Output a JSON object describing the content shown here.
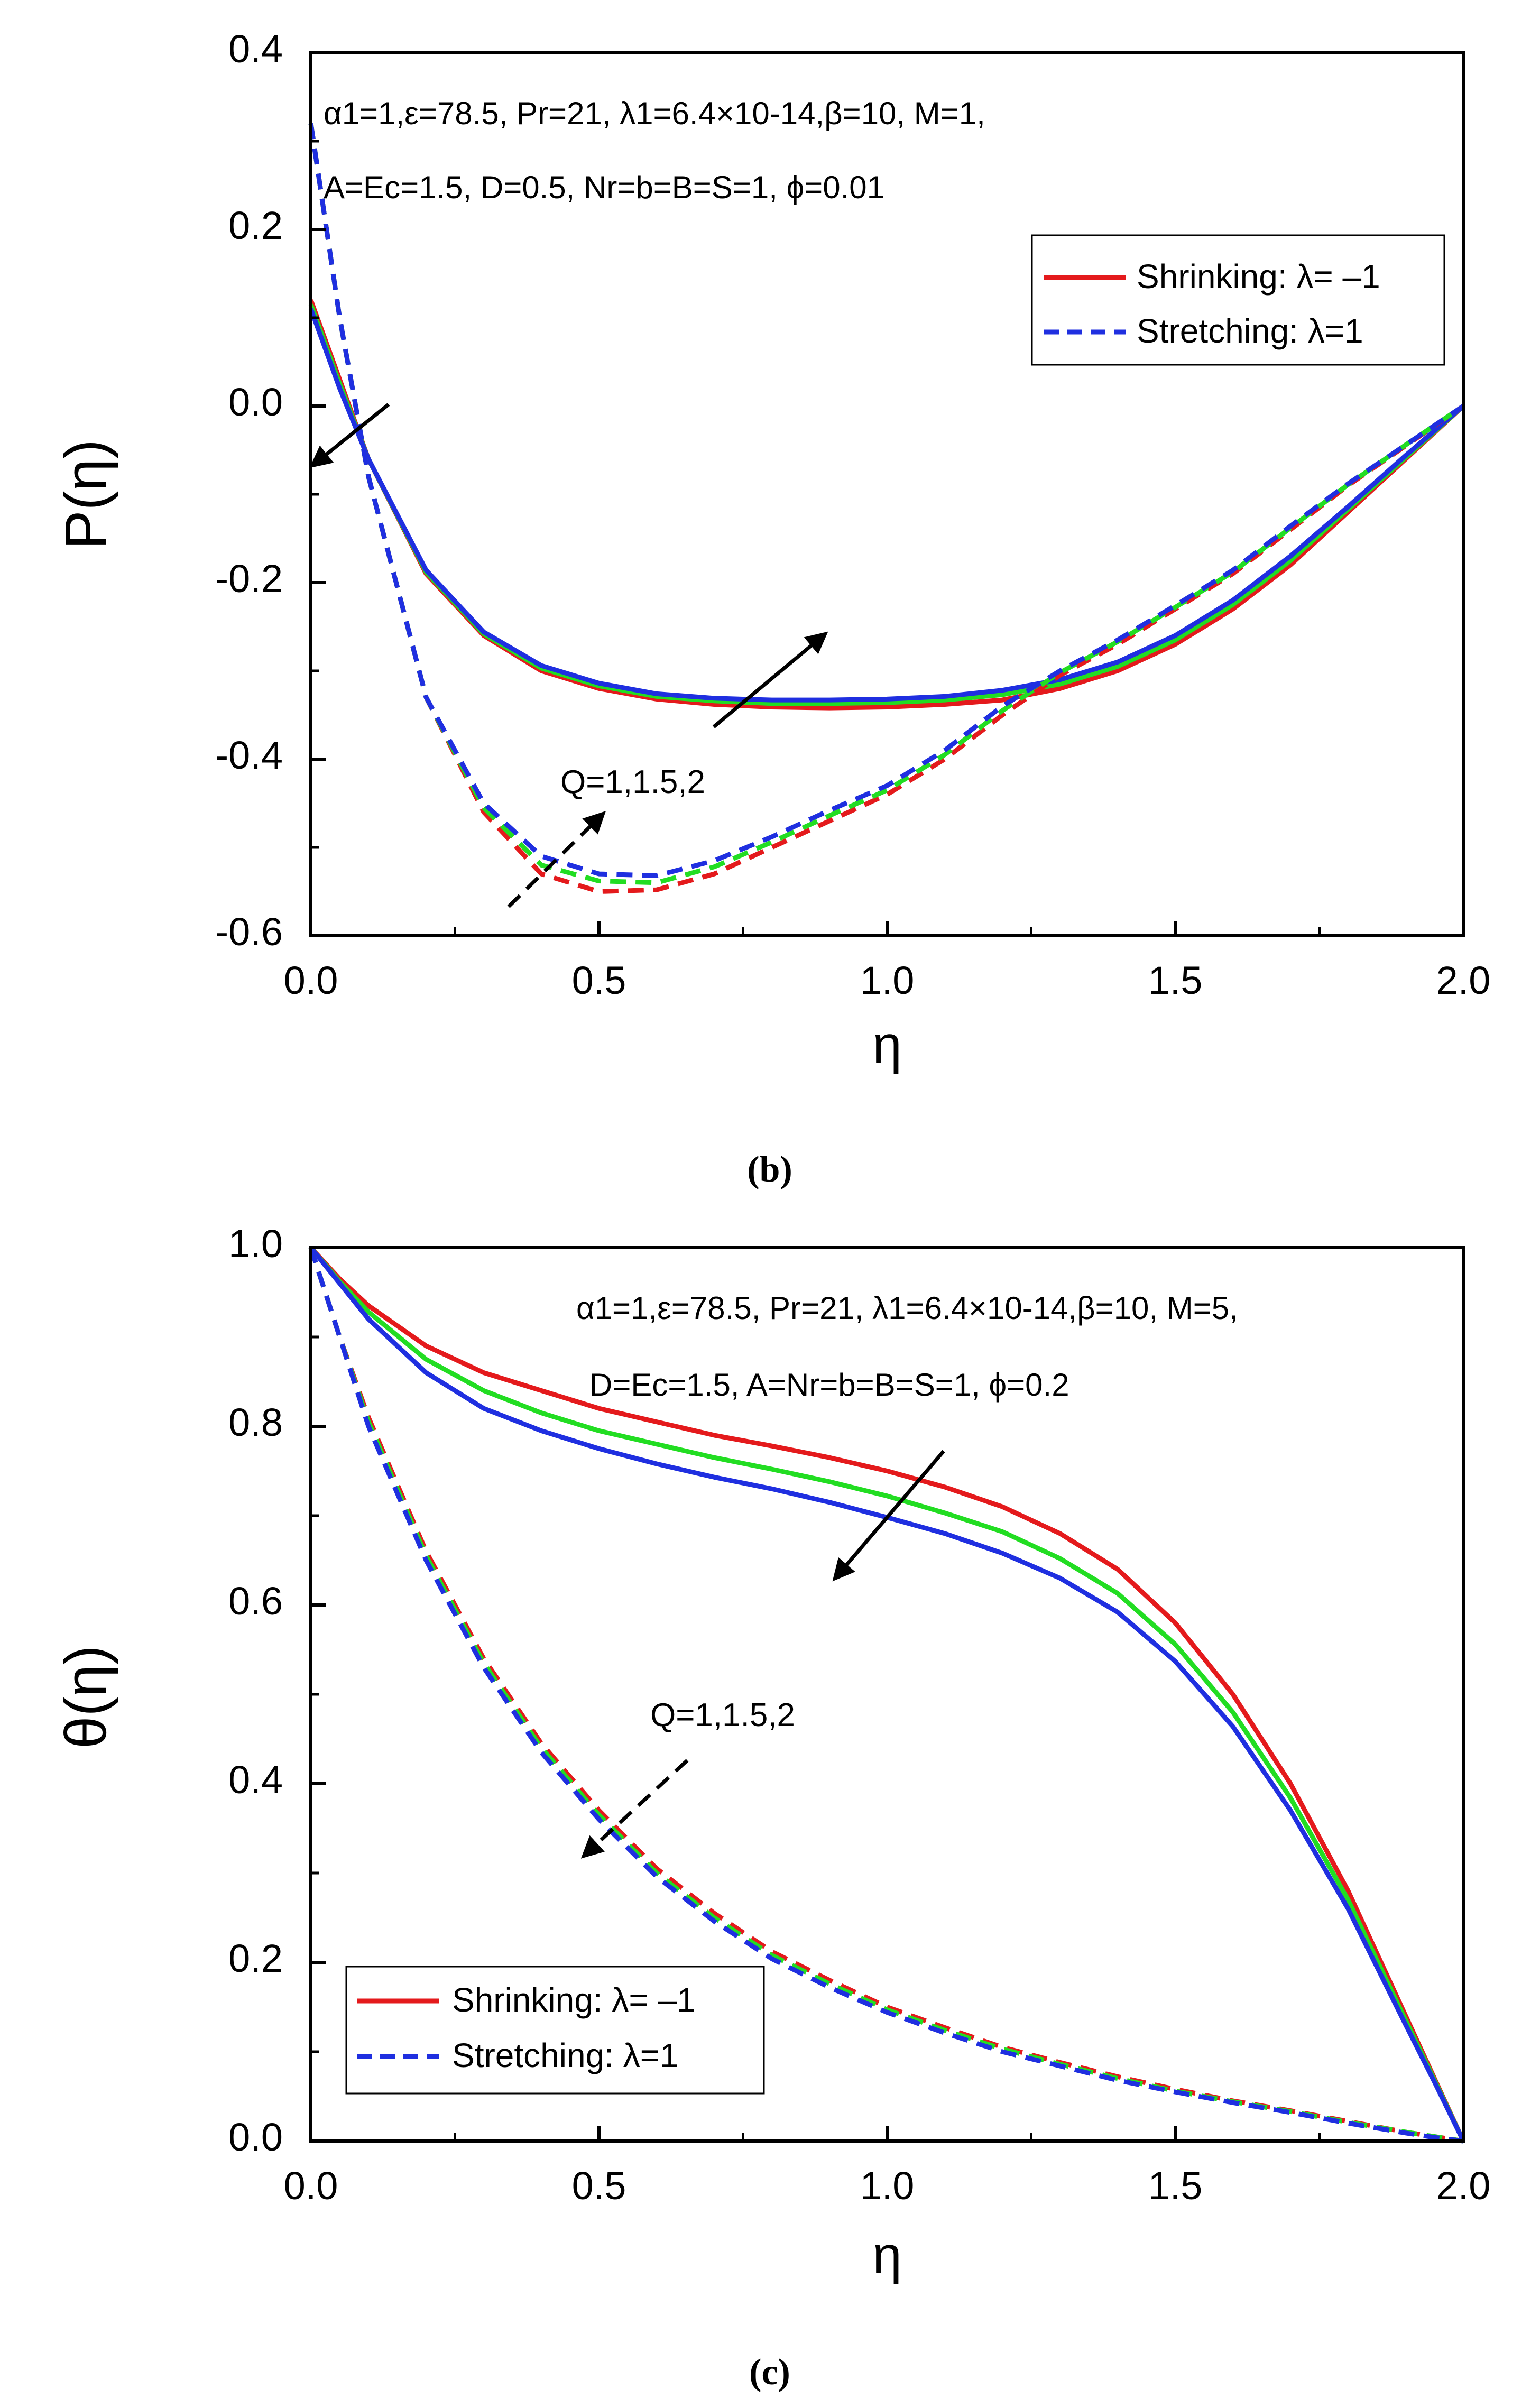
{
  "colors": {
    "q1": "#e41a1c",
    "q15": "#22dd22",
    "q2": "#1f2fe0",
    "axis": "#000000"
  },
  "chart_data": [
    {
      "type": "line",
      "panel_label": "(b)",
      "title": "",
      "xlabel": "η",
      "ylabel": "P(η)",
      "xlim": [
        0,
        2
      ],
      "ylim": [
        -0.6,
        0.4
      ],
      "xticks": [
        "0.0",
        "0.5",
        "1.0",
        "1.5",
        "2.0"
      ],
      "yticks": [
        "-0.6",
        "-0.4",
        "-0.2",
        "0.0",
        "0.2",
        "0.4"
      ],
      "annotation_line1": "α1=1,ε=78.5, Pr=21, λ1=6.4×10-14,β=10, M=1,",
      "annotation_line2": "A=Ec=1.5, D=0.5, Nr=b=B=S=1, ϕ=0.01",
      "arrow_label": "Q=1,1.5,2",
      "legend": {
        "position": "top-right",
        "solid": "Shrinking: λ= –1",
        "dashed": "Stretching: λ=1"
      },
      "x": [
        0,
        0.05,
        0.1,
        0.2,
        0.3,
        0.4,
        0.5,
        0.6,
        0.7,
        0.8,
        0.9,
        1.0,
        1.1,
        1.2,
        1.3,
        1.4,
        1.5,
        1.6,
        1.7,
        1.8,
        1.9,
        2.0
      ],
      "series": [
        {
          "name": "Shrinking λ=-1, Q=1",
          "style": "solid",
          "color": "#e41a1c",
          "values": [
            0.12,
            0.03,
            -0.06,
            -0.19,
            -0.26,
            -0.3,
            -0.32,
            -0.332,
            -0.338,
            -0.341,
            -0.342,
            -0.341,
            -0.338,
            -0.333,
            -0.32,
            -0.3,
            -0.27,
            -0.23,
            -0.18,
            -0.12,
            -0.06,
            0.0
          ]
        },
        {
          "name": "Shrinking λ=-1, Q=1.5",
          "style": "solid",
          "color": "#22dd22",
          "values": [
            0.115,
            0.025,
            -0.06,
            -0.188,
            -0.258,
            -0.297,
            -0.317,
            -0.329,
            -0.334,
            -0.337,
            -0.337,
            -0.336,
            -0.333,
            -0.327,
            -0.315,
            -0.295,
            -0.265,
            -0.225,
            -0.175,
            -0.117,
            -0.058,
            0.0
          ]
        },
        {
          "name": "Shrinking λ=-1, Q=2",
          "style": "solid",
          "color": "#1f2fe0",
          "values": [
            0.11,
            0.02,
            -0.06,
            -0.186,
            -0.256,
            -0.294,
            -0.314,
            -0.326,
            -0.331,
            -0.333,
            -0.333,
            -0.332,
            -0.329,
            -0.322,
            -0.31,
            -0.29,
            -0.26,
            -0.22,
            -0.17,
            -0.114,
            -0.056,
            0.0
          ]
        },
        {
          "name": "Stretching λ=1, Q=1",
          "style": "dashed",
          "color": "#e41a1c",
          "values": [
            0.32,
            0.1,
            -0.08,
            -0.33,
            -0.46,
            -0.53,
            -0.55,
            -0.548,
            -0.53,
            -0.5,
            -0.47,
            -0.44,
            -0.4,
            -0.35,
            -0.305,
            -0.27,
            -0.23,
            -0.19,
            -0.14,
            -0.09,
            -0.045,
            0.0
          ]
        },
        {
          "name": "Stretching λ=1, Q=1.5",
          "style": "dashed",
          "color": "#22dd22",
          "values": [
            0.32,
            0.1,
            -0.08,
            -0.33,
            -0.455,
            -0.52,
            -0.538,
            -0.54,
            -0.522,
            -0.494,
            -0.464,
            -0.435,
            -0.395,
            -0.345,
            -0.302,
            -0.267,
            -0.228,
            -0.188,
            -0.138,
            -0.089,
            -0.044,
            0.0
          ]
        },
        {
          "name": "Stretching λ=1, Q=2",
          "style": "dashed",
          "color": "#1f2fe0",
          "values": [
            0.32,
            0.1,
            -0.08,
            -0.33,
            -0.45,
            -0.51,
            -0.53,
            -0.532,
            -0.515,
            -0.488,
            -0.458,
            -0.43,
            -0.39,
            -0.34,
            -0.3,
            -0.265,
            -0.226,
            -0.186,
            -0.136,
            -0.088,
            -0.044,
            0.0
          ]
        }
      ]
    },
    {
      "type": "line",
      "panel_label": "(c)",
      "title": "",
      "xlabel": "η",
      "ylabel": "θ(η)",
      "xlim": [
        0,
        2
      ],
      "ylim": [
        0,
        1
      ],
      "xticks": [
        "0.0",
        "0.5",
        "1.0",
        "1.5",
        "2.0"
      ],
      "yticks": [
        "0.0",
        "0.2",
        "0.4",
        "0.6",
        "0.8",
        "1.0"
      ],
      "annotation_line1": "α1=1,ε=78.5, Pr=21, λ1=6.4×10-14,β=10, M=5,",
      "annotation_line2": "D=Ec=1.5, A=Nr=b=B=S=1, ϕ=0.2",
      "arrow_label": "Q=1,1.5,2",
      "legend": {
        "position": "bottom-left",
        "solid": "Shrinking: λ= –1",
        "dashed": "Stretching: λ=1"
      },
      "x": [
        0,
        0.05,
        0.1,
        0.2,
        0.3,
        0.4,
        0.5,
        0.6,
        0.7,
        0.8,
        0.9,
        1.0,
        1.1,
        1.2,
        1.3,
        1.4,
        1.5,
        1.6,
        1.7,
        1.8,
        1.9,
        1.95,
        2.0
      ],
      "series": [
        {
          "name": "Shrinking λ=-1, Q=1",
          "style": "solid",
          "color": "#e41a1c",
          "values": [
            1.0,
            0.965,
            0.935,
            0.89,
            0.86,
            0.84,
            0.82,
            0.805,
            0.79,
            0.778,
            0.765,
            0.75,
            0.732,
            0.71,
            0.68,
            0.64,
            0.58,
            0.5,
            0.4,
            0.28,
            0.14,
            0.07,
            0.0
          ]
        },
        {
          "name": "Shrinking λ=-1, Q=1.5",
          "style": "solid",
          "color": "#22dd22",
          "values": [
            1.0,
            0.962,
            0.928,
            0.875,
            0.84,
            0.815,
            0.795,
            0.78,
            0.765,
            0.752,
            0.738,
            0.722,
            0.703,
            0.682,
            0.652,
            0.613,
            0.556,
            0.48,
            0.384,
            0.27,
            0.135,
            0.068,
            0.0
          ]
        },
        {
          "name": "Shrinking λ=-1, Q=2",
          "style": "solid",
          "color": "#1f2fe0",
          "values": [
            1.0,
            0.96,
            0.92,
            0.86,
            0.82,
            0.795,
            0.775,
            0.758,
            0.743,
            0.73,
            0.715,
            0.698,
            0.68,
            0.658,
            0.63,
            0.592,
            0.537,
            0.464,
            0.37,
            0.26,
            0.13,
            0.066,
            0.0
          ]
        },
        {
          "name": "Stretching λ=1, Q=1",
          "style": "dashed",
          "color": "#e41a1c",
          "values": [
            1.0,
            0.9,
            0.81,
            0.66,
            0.54,
            0.445,
            0.37,
            0.305,
            0.255,
            0.212,
            0.18,
            0.15,
            0.127,
            0.105,
            0.088,
            0.072,
            0.058,
            0.045,
            0.034,
            0.022,
            0.01,
            0.005,
            0.0
          ]
        },
        {
          "name": "Stretching λ=1, Q=1.5",
          "style": "dashed",
          "color": "#22dd22",
          "values": [
            1.0,
            0.9,
            0.805,
            0.655,
            0.535,
            0.44,
            0.365,
            0.3,
            0.25,
            0.208,
            0.176,
            0.147,
            0.124,
            0.103,
            0.086,
            0.07,
            0.056,
            0.044,
            0.033,
            0.021,
            0.01,
            0.005,
            0.0
          ]
        },
        {
          "name": "Stretching λ=1, Q=2",
          "style": "dashed",
          "color": "#1f2fe0",
          "values": [
            1.0,
            0.9,
            0.8,
            0.65,
            0.53,
            0.435,
            0.36,
            0.296,
            0.246,
            0.204,
            0.172,
            0.144,
            0.121,
            0.1,
            0.084,
            0.068,
            0.055,
            0.043,
            0.032,
            0.02,
            0.009,
            0.004,
            0.0
          ]
        }
      ]
    }
  ]
}
